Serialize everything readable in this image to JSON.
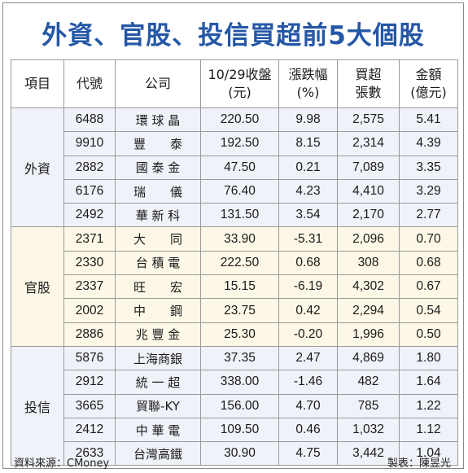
{
  "title": "外資、官股、投信買超前5大個股",
  "headers": {
    "category": "項目",
    "code": "代號",
    "company": "公司",
    "close_line1": "10/29收盤",
    "close_line2": "(元)",
    "change_line1": "漲跌幅",
    "change_line2": "(%)",
    "volume_line1": "買超",
    "volume_line2": "張數",
    "amount_line1": "金額",
    "amount_line2": "(億元)"
  },
  "groups": [
    {
      "name": "外資",
      "rows": [
        {
          "code": "6488",
          "company": "環 球 晶",
          "close": "220.50",
          "change": "9.98",
          "volume": "2,575",
          "amount": "5.41"
        },
        {
          "code": "9910",
          "company": "豐　　泰",
          "close": "192.50",
          "change": "8.15",
          "volume": "2,314",
          "amount": "4.39"
        },
        {
          "code": "2882",
          "company": "國 泰 金",
          "close": "47.50",
          "change": "0.21",
          "volume": "7,089",
          "amount": "3.35"
        },
        {
          "code": "6176",
          "company": "瑞　　儀",
          "close": "76.40",
          "change": "4.23",
          "volume": "4,410",
          "amount": "3.29"
        },
        {
          "code": "2492",
          "company": "華 新 科",
          "close": "131.50",
          "change": "3.54",
          "volume": "2,170",
          "amount": "2.77"
        }
      ]
    },
    {
      "name": "官股",
      "rows": [
        {
          "code": "2371",
          "company": "大　　同",
          "close": "33.90",
          "change": "-5.31",
          "volume": "2,096",
          "amount": "0.70"
        },
        {
          "code": "2330",
          "company": "台 積 電",
          "close": "222.50",
          "change": "0.68",
          "volume": "308",
          "amount": "0.68"
        },
        {
          "code": "2337",
          "company": "旺　　宏",
          "close": "15.15",
          "change": "-6.19",
          "volume": "4,302",
          "amount": "0.67"
        },
        {
          "code": "2002",
          "company": "中　　鋼",
          "close": "23.75",
          "change": "0.42",
          "volume": "2,294",
          "amount": "0.54"
        },
        {
          "code": "2886",
          "company": "兆 豐 金",
          "close": "25.30",
          "change": "-0.20",
          "volume": "1,996",
          "amount": "0.50"
        }
      ]
    },
    {
      "name": "投信",
      "rows": [
        {
          "code": "5876",
          "company": "上海商銀",
          "close": "37.35",
          "change": "2.47",
          "volume": "4,869",
          "amount": "1.80"
        },
        {
          "code": "2912",
          "company": "統 一 超",
          "close": "338.00",
          "change": "-1.46",
          "volume": "482",
          "amount": "1.64"
        },
        {
          "code": "3665",
          "company": "貿聯-KY",
          "close": "156.00",
          "change": "4.70",
          "volume": "785",
          "amount": "1.22"
        },
        {
          "code": "2412",
          "company": "中 華 電",
          "close": "109.50",
          "change": "0.46",
          "volume": "1,032",
          "amount": "1.12"
        },
        {
          "code": "2633",
          "company": "台灣高鐵",
          "close": "30.90",
          "change": "4.75",
          "volume": "3,442",
          "amount": "1.04"
        }
      ]
    }
  ],
  "footer": {
    "source": "資料來源：CMoney",
    "maker": "製表：陳昱光"
  }
}
